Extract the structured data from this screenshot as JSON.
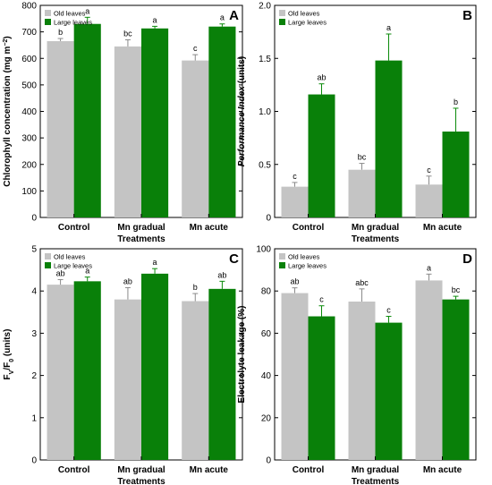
{
  "colors": {
    "old": "#c4c4c4",
    "large": "#098009",
    "error_old": "#8a8a8a",
    "error_large": "#0a8a0a"
  },
  "chart_data": [
    {
      "id": "A",
      "type": "bar",
      "panel_label": "A",
      "categories": [
        "Control",
        "Mn gradual",
        "Mn acute"
      ],
      "xlabel": "Treatments",
      "ylabel": "Chlorophyll concentration (mg m−2)",
      "ylim": [
        0,
        800
      ],
      "yticks": [
        0,
        100,
        200,
        300,
        400,
        500,
        600,
        700,
        800
      ],
      "ytick_labels": [
        "0",
        "100",
        "200",
        "300",
        "400",
        "500",
        "600",
        "700",
        "800"
      ],
      "legend_position": "top-left",
      "series": [
        {
          "name": "Old leaves",
          "values": [
            665,
            645,
            592
          ],
          "errors": [
            10,
            25,
            22
          ],
          "letters": [
            "b",
            "bc",
            "c"
          ]
        },
        {
          "name": "Large leaves",
          "values": [
            730,
            713,
            720
          ],
          "errors": [
            25,
            8,
            10
          ],
          "letters": [
            "a",
            "a",
            "a"
          ]
        }
      ]
    },
    {
      "id": "B",
      "type": "bar",
      "panel_label": "B",
      "categories": [
        "Control",
        "Mn gradual",
        "Mn acute"
      ],
      "xlabel": "Treatments",
      "ylabel": "Performance Index (units)",
      "ylim": [
        0,
        2.0
      ],
      "yticks": [
        0,
        0.5,
        1.0,
        1.5,
        2.0
      ],
      "ytick_labels": [
        "0",
        "0.5",
        "1.0",
        "1.5",
        "2.0"
      ],
      "legend_position": "top-left",
      "series": [
        {
          "name": "Old leaves",
          "values": [
            0.29,
            0.45,
            0.31
          ],
          "errors": [
            0.04,
            0.06,
            0.08
          ],
          "letters": [
            "c",
            "bc",
            "c"
          ]
        },
        {
          "name": "Large leaves",
          "values": [
            1.16,
            1.48,
            0.81
          ],
          "errors": [
            0.1,
            0.25,
            0.22
          ],
          "letters": [
            "ab",
            "a",
            "b"
          ]
        }
      ]
    },
    {
      "id": "C",
      "type": "bar",
      "panel_label": "C",
      "categories": [
        "Control",
        "Mn gradual",
        "Mn acute"
      ],
      "xlabel": "Treatments",
      "ylabel": "FV/F0 (units)",
      "ylim": [
        0,
        5
      ],
      "yticks": [
        0,
        1,
        2,
        3,
        4,
        5
      ],
      "ytick_labels": [
        "0",
        "1",
        "2",
        "3",
        "4",
        "5"
      ],
      "legend_position": "top-left",
      "series": [
        {
          "name": "Old leaves",
          "values": [
            4.15,
            3.8,
            3.76
          ],
          "errors": [
            0.12,
            0.28,
            0.18
          ],
          "letters": [
            "ab",
            "ab",
            "b"
          ]
        },
        {
          "name": "Large leaves",
          "values": [
            4.23,
            4.41,
            4.05
          ],
          "errors": [
            0.1,
            0.12,
            0.18
          ],
          "letters": [
            "a",
            "a",
            "ab"
          ]
        }
      ]
    },
    {
      "id": "D",
      "type": "bar",
      "panel_label": "D",
      "categories": [
        "Control",
        "Mn gradual",
        "Mn acute"
      ],
      "xlabel": "Treatments",
      "ylabel": "Electrolyte leakage (%)",
      "ylim": [
        0,
        100
      ],
      "yticks": [
        0,
        20,
        40,
        60,
        80,
        100
      ],
      "ytick_labels": [
        "0",
        "20",
        "40",
        "60",
        "80",
        "100"
      ],
      "legend_position": "top-left",
      "series": [
        {
          "name": "Old leaves",
          "values": [
            79,
            75,
            85
          ],
          "errors": [
            2.5,
            6,
            3
          ],
          "letters": [
            "ab",
            "abc",
            "a"
          ]
        },
        {
          "name": "Large leaves",
          "values": [
            68,
            65,
            76
          ],
          "errors": [
            5,
            3,
            1.5
          ],
          "letters": [
            "c",
            "c",
            "bc"
          ]
        }
      ]
    }
  ]
}
